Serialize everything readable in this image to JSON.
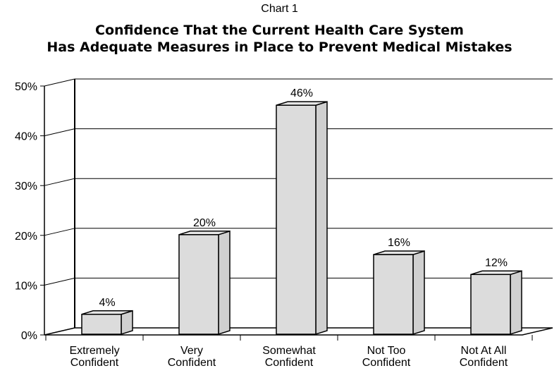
{
  "chart_label": "Chart 1",
  "title_line1": "Confidence That the Current Health Care System",
  "title_line2": "Has Adequate Measures in Place to Prevent Medical Mistakes",
  "colors": {
    "bar_front": "#dcdcdc",
    "bar_side": "#d0d0d0",
    "bar_top": "#e6e6e6",
    "line": "#000000"
  },
  "chart_data": {
    "type": "bar",
    "title": "Confidence That the Current Health Care System Has Adequate Measures in Place to Prevent Medical Mistakes",
    "categories": [
      [
        "Extremely",
        "Confident"
      ],
      [
        "Very",
        "Confident"
      ],
      [
        "Somewhat",
        "Confident"
      ],
      [
        "Not Too",
        "Confident"
      ],
      [
        "Not At All",
        "Confident"
      ]
    ],
    "values": [
      4,
      20,
      46,
      16,
      12
    ],
    "value_labels": [
      "4%",
      "20%",
      "46%",
      "16%",
      "12%"
    ],
    "ylim": [
      0,
      50
    ],
    "yticks": [
      0,
      10,
      20,
      30,
      40,
      50
    ],
    "ytick_labels": [
      "0%",
      "10%",
      "20%",
      "30%",
      "40%",
      "50%"
    ],
    "xlabel": "",
    "ylabel": "",
    "grid": true,
    "style": "3d"
  }
}
